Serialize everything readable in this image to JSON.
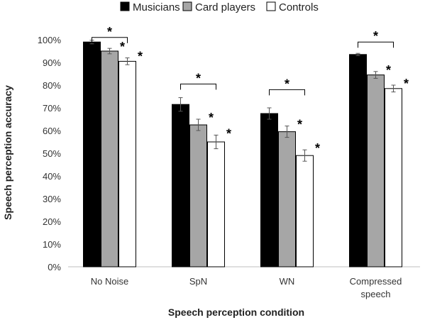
{
  "chart_data": {
    "type": "bar",
    "categories": [
      "No Noise",
      "SpN",
      "WN",
      "Compressed speech"
    ],
    "category_lines": [
      [
        "No Noise"
      ],
      [
        "SpN"
      ],
      [
        "WN"
      ],
      [
        "Compressed",
        "speech"
      ]
    ],
    "series": [
      {
        "name": "Musicians",
        "values": [
          99,
          71.5,
          67.5,
          93.5
        ],
        "errors": [
          0.8,
          3,
          2.5,
          0.5
        ],
        "color": "#000000"
      },
      {
        "name": "Card players",
        "values": [
          95,
          62.5,
          59.5,
          84.5
        ],
        "errors": [
          1.2,
          2.5,
          2.5,
          1.5
        ],
        "color": "#a6a6a6"
      },
      {
        "name": "Controls",
        "values": [
          90.5,
          55,
          49,
          78.5
        ],
        "errors": [
          1.5,
          3,
          2.5,
          1.5
        ],
        "color": "#ffffff"
      }
    ],
    "ylim": [
      0,
      100
    ],
    "yticks": [
      0,
      10,
      20,
      30,
      40,
      50,
      60,
      70,
      80,
      90,
      100
    ],
    "ytick_labels": [
      "0%",
      "10%",
      "20%",
      "30%",
      "40%",
      "50%",
      "60%",
      "70%",
      "80%",
      "90%",
      "100%"
    ],
    "xlabel": "Speech perception condition",
    "ylabel": "Speech perception accuracy",
    "legend_position": "top",
    "grid": false,
    "significance_marker": "*",
    "significance_stars_series": [
      1,
      2
    ],
    "bracket_value": [
      101,
      80.5,
      78,
      99
    ]
  }
}
